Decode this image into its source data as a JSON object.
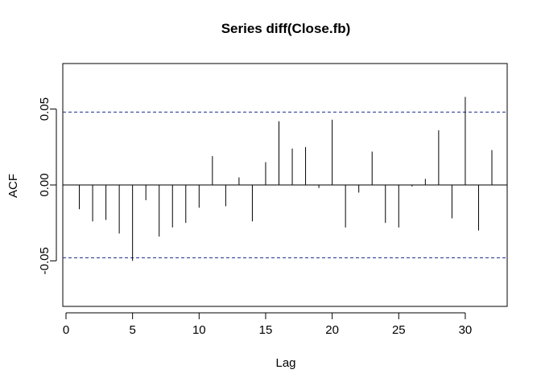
{
  "chart_data": {
    "type": "bar",
    "subtype": "acf",
    "title": "Series  diff(Close.fb)",
    "xlabel": "Lag",
    "ylabel": "ACF",
    "xlim": [
      0,
      32
    ],
    "ylim": [
      -0.08,
      0.08
    ],
    "x_ticks": [
      0,
      5,
      10,
      15,
      20,
      25,
      30
    ],
    "x_tick_labels": [
      "0",
      "5",
      "10",
      "15",
      "20",
      "25",
      "30"
    ],
    "y_ticks": [
      -0.05,
      0.0,
      0.05
    ],
    "y_tick_labels": [
      "-0.05",
      "0.00",
      "0.05"
    ],
    "confidence_bounds": [
      0.048,
      -0.048
    ],
    "lags": [
      1,
      2,
      3,
      4,
      5,
      6,
      7,
      8,
      9,
      10,
      11,
      12,
      13,
      14,
      15,
      16,
      17,
      18,
      19,
      20,
      21,
      22,
      23,
      24,
      25,
      26,
      27,
      28,
      29,
      30,
      31,
      32
    ],
    "values": [
      -0.016,
      -0.024,
      -0.023,
      -0.032,
      -0.05,
      -0.01,
      -0.034,
      -0.028,
      -0.025,
      -0.015,
      0.019,
      -0.014,
      0.005,
      -0.024,
      0.015,
      0.042,
      0.024,
      0.025,
      -0.002,
      0.043,
      -0.028,
      -0.005,
      0.022,
      -0.025,
      -0.028,
      -0.001,
      0.004,
      0.036,
      -0.022,
      0.058,
      -0.03,
      0.023
    ],
    "grid": false,
    "colors": {
      "bars": "#000000",
      "confidence_line": "#1f2f8f",
      "frame": "#000000",
      "background": "#ffffff"
    }
  }
}
